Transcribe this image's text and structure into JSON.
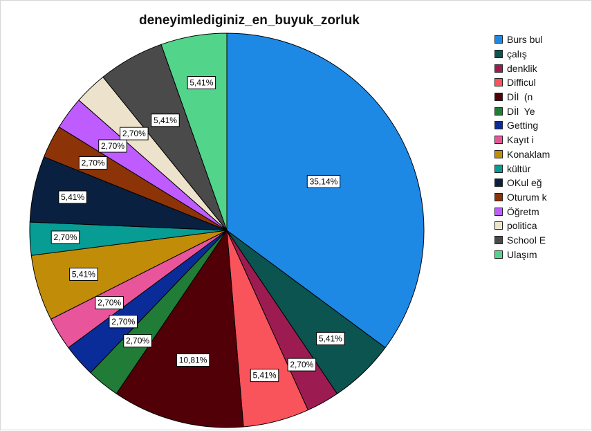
{
  "chart_data": {
    "type": "pie",
    "title": "deneyimlediginiz_en_buyuk_zorluk",
    "legend_position": "right",
    "start_angle_deg": 0,
    "direction": "clockwise",
    "slices": [
      {
        "label": "Burs bul",
        "value": 35.14,
        "value_label": "35,14%",
        "color": "#1e88e5"
      },
      {
        "label": "çalış",
        "value": 5.41,
        "value_label": "5,41%",
        "color": "#0b5450"
      },
      {
        "label": "denklik",
        "value": 2.7,
        "value_label": "2,70%",
        "color": "#9c1c52"
      },
      {
        "label": "Difficul",
        "value": 5.41,
        "value_label": "5,41%",
        "color": "#f9535b"
      },
      {
        "label": "Dİl  (n",
        "value": 10.81,
        "value_label": "10,81%",
        "color": "#520008"
      },
      {
        "label": "Dİl  Ye",
        "value": 2.7,
        "value_label": "2,70%",
        "color": "#207c36"
      },
      {
        "label": "Getting",
        "value": 2.7,
        "value_label": "2,70%",
        "color": "#0a2c99"
      },
      {
        "label": "Kayıt i",
        "value": 2.7,
        "value_label": "2,70%",
        "color": "#e8559a"
      },
      {
        "label": "Konaklam",
        "value": 5.41,
        "value_label": "5,41%",
        "color": "#c18d08"
      },
      {
        "label": "kültür",
        "value": 2.7,
        "value_label": "2,70%",
        "color": "#079c94"
      },
      {
        "label": "OKul eğ",
        "value": 5.41,
        "value_label": "5,41%",
        "color": "#0a2040"
      },
      {
        "label": "Oturum k",
        "value": 2.7,
        "value_label": "2,70%",
        "color": "#8c3308"
      },
      {
        "label": "Öğretm",
        "value": 2.7,
        "value_label": "2,70%",
        "color": "#bf5cff"
      },
      {
        "label": "politica",
        "value": 2.7,
        "value_label": "2,70%",
        "color": "#ede3cc"
      },
      {
        "label": "School E",
        "value": 5.41,
        "value_label": "5,41%",
        "color": "#4a4a4a"
      },
      {
        "label": "Ulaşım",
        "value": 5.41,
        "value_label": "5,41%",
        "color": "#52d48a"
      }
    ]
  }
}
